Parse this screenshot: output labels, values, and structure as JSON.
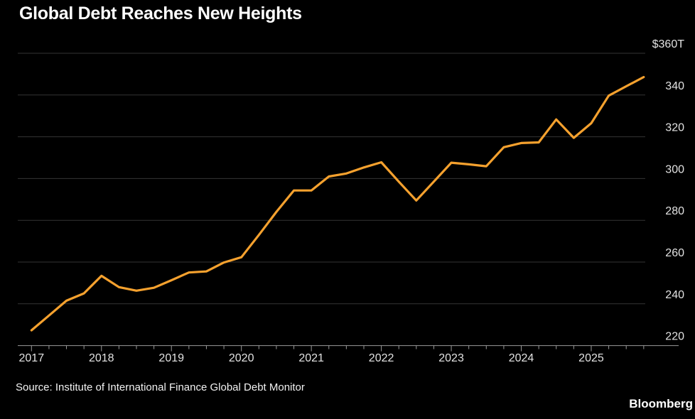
{
  "header": {
    "title": "Global Debt Reaches New Heights"
  },
  "footer": {
    "source": "Source: Institute of International Finance Global Debt Monitor",
    "brand": "Bloomberg"
  },
  "chart_data": {
    "type": "line",
    "title": "Global Debt Reaches New Heights",
    "unit": "USD trillions",
    "periods": [
      "2017 Q1",
      "2017 Q2",
      "2017 Q3",
      "2017 Q4",
      "2018 Q1",
      "2018 Q2",
      "2018 Q3",
      "2018 Q4",
      "2019 Q1",
      "2019 Q2",
      "2019 Q3",
      "2019 Q4",
      "2020 Q1",
      "2020 Q2",
      "2020 Q3",
      "2020 Q4",
      "2021 Q1",
      "2021 Q2",
      "2021 Q3",
      "2021 Q4",
      "2022 Q1",
      "2022 Q2",
      "2022 Q3",
      "2022 Q4",
      "2023 Q1",
      "2023 Q2",
      "2023 Q3",
      "2023 Q4",
      "2024 Q1",
      "2024 Q2",
      "2024 Q3",
      "2024 Q4",
      "2025 Q1",
      "2025 Q2",
      "2025 Q3",
      "2025 Q4"
    ],
    "values": [
      227.3,
      234.4,
      241.5,
      245.0,
      253.4,
      248.0,
      246.3,
      247.7,
      251.3,
      255.0,
      255.5,
      259.8,
      262.3,
      273.0,
      284.0,
      294.3,
      294.3,
      301.0,
      302.4,
      305.3,
      307.8,
      298.5,
      289.5,
      298.5,
      307.6,
      306.8,
      305.9,
      315.0,
      317.0,
      317.3,
      328.3,
      319.5,
      326.5,
      339.7,
      344.2,
      348.6
    ],
    "xlabel": "",
    "ylabel": "",
    "ylim": [
      220,
      360
    ],
    "yticks": [
      {
        "value": 360,
        "label": "$360T"
      },
      {
        "value": 340,
        "label": "340"
      },
      {
        "value": 320,
        "label": "320"
      },
      {
        "value": 300,
        "label": "300"
      },
      {
        "value": 280,
        "label": "280"
      },
      {
        "value": 260,
        "label": "260"
      },
      {
        "value": 240,
        "label": "240"
      },
      {
        "value": 220,
        "label": "220"
      }
    ],
    "xtick_labels": [
      "2017",
      "2018",
      "2019",
      "2020",
      "2021",
      "2022",
      "2023",
      "2024",
      "2025"
    ],
    "xticks_per_year": 4,
    "grid": true,
    "legend": null,
    "colors": {
      "line": "#f5a12e",
      "grid": "#343434",
      "axis": "#9a9a9a",
      "tick_label": "#e2e2e2",
      "background": "#000000"
    }
  }
}
